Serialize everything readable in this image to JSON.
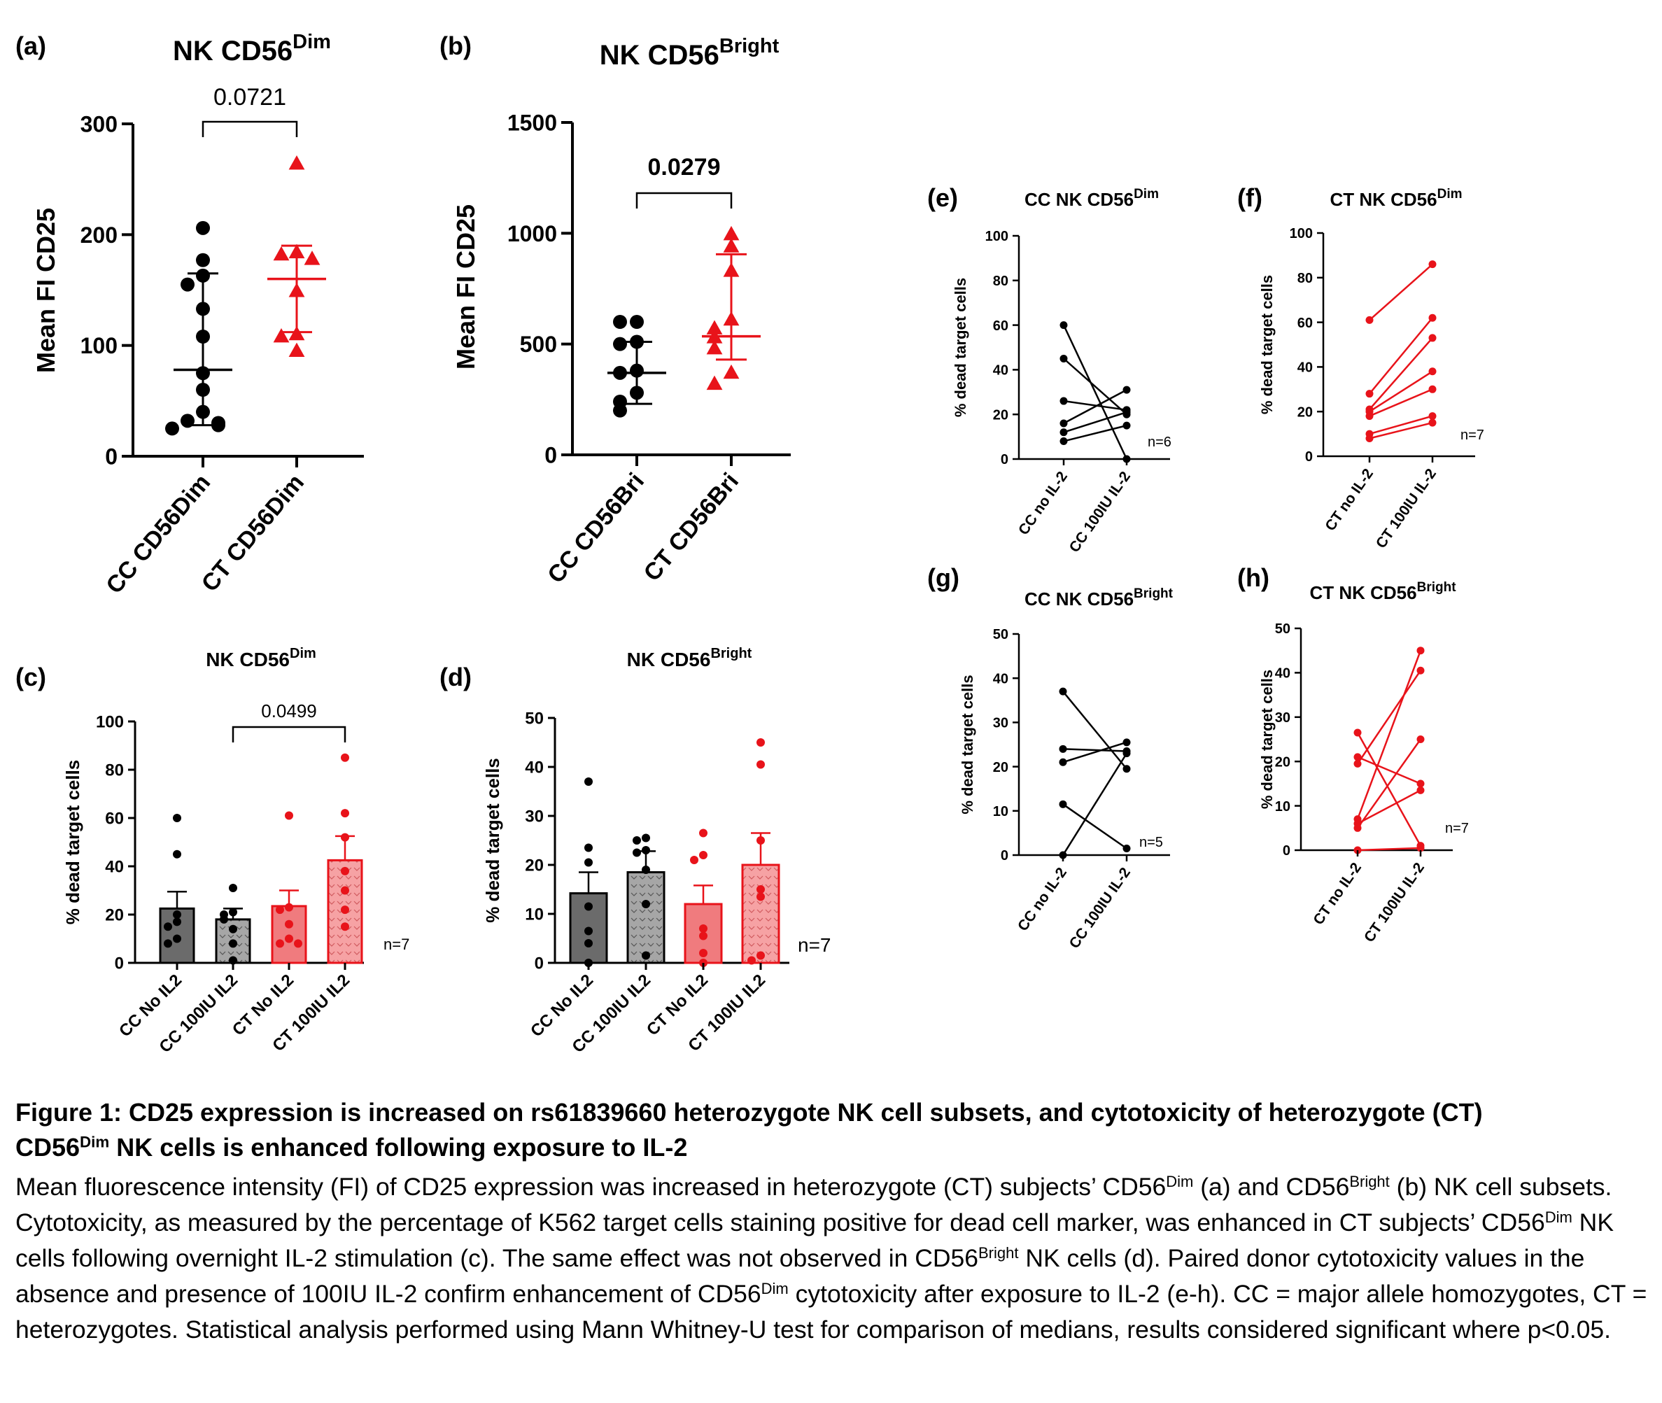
{
  "colors": {
    "cc": "#000000",
    "ct": "#e8131a",
    "ccBar1": "#6b6b6b",
    "ccBar2": "#a6a6a6",
    "ctBar1": "#f07b7e",
    "ctBar2": "#f6a2a4"
  },
  "panels": [
    {
      "id": "a",
      "letter": "(a)",
      "title": "NK CD56",
      "title_sup": "Dim",
      "pvalue": "0.0721",
      "ylabel": "Mean FI CD25",
      "yticks": [
        "0",
        "100",
        "200",
        "300"
      ]
    },
    {
      "id": "b",
      "letter": "(b)",
      "title": "NK CD56",
      "title_sup": "Bright",
      "pvalue": "0.0279",
      "ylabel": "Mean FI CD25",
      "yticks": [
        "0",
        "500",
        "1000",
        "1500"
      ]
    },
    {
      "id": "c",
      "letter": "(c)",
      "title": "NK CD56",
      "title_sup": "Dim",
      "pvalue": "0.0499",
      "ylabel": "% dead target cells",
      "yticks": [
        "0",
        "20",
        "40",
        "60",
        "80",
        "100"
      ],
      "n": "n=7"
    },
    {
      "id": "d",
      "letter": "(d)",
      "title": "NK CD56",
      "title_sup": "Bright",
      "ylabel": "% dead target cells",
      "yticks": [
        "0",
        "10",
        "20",
        "30",
        "40",
        "50"
      ],
      "n": "n=7"
    },
    {
      "id": "e",
      "letter": "(e)",
      "title": "CC NK CD56",
      "title_sup": "Dim",
      "ylabel": "% dead target cells",
      "yticks": [
        "0",
        "20",
        "40",
        "60",
        "80",
        "100"
      ],
      "n": "n=6"
    },
    {
      "id": "f",
      "letter": "(f)",
      "title": "CT NK CD56",
      "title_sup": "Dim",
      "ylabel": "% dead target cells",
      "yticks": [
        "0",
        "20",
        "40",
        "60",
        "80",
        "100"
      ],
      "n": "n=7"
    },
    {
      "id": "g",
      "letter": "(g)",
      "title": "CC NK CD56",
      "title_sup": "Bright",
      "ylabel": "% dead target cells",
      "yticks": [
        "0",
        "10",
        "20",
        "30",
        "40",
        "50"
      ],
      "n": "n=5"
    },
    {
      "id": "h",
      "letter": "(h)",
      "title": "CT NK CD56",
      "title_sup": "Bright",
      "ylabel": "% dead target cells",
      "yticks": [
        "0",
        "10",
        "20",
        "30",
        "40",
        "50"
      ],
      "n": "n=7"
    }
  ],
  "chart_data": [
    {
      "panel": "a",
      "type": "scatter",
      "title": "NK CD56Dim",
      "ylabel": "Mean FI CD25",
      "ylim": [
        0,
        300
      ],
      "categories": [
        "CC CD56Dim",
        "CT CD56Dim"
      ],
      "series": [
        {
          "name": "CC CD56Dim",
          "color": "#000000",
          "marker": "circle",
          "values": [
            206,
            177,
            163,
            155,
            133,
            108,
            75,
            60,
            40,
            32,
            30,
            28,
            25
          ],
          "mean": 78,
          "error": [
            28,
            165
          ]
        },
        {
          "name": "CT CD56Dim",
          "color": "#e8131a",
          "marker": "triangle",
          "values": [
            264,
            184,
            182,
            178,
            149,
            110,
            108,
            95
          ],
          "mean": 160,
          "error": [
            112,
            190
          ]
        }
      ],
      "annotation": {
        "text": "0.0721",
        "between": [
          "CC CD56Dim",
          "CT CD56Dim"
        ]
      }
    },
    {
      "panel": "b",
      "type": "scatter",
      "title": "NK CD56Bright",
      "ylabel": "Mean FI CD25",
      "ylim": [
        0,
        1500
      ],
      "categories": [
        "CC CD56Bri",
        "CT CD56Bri"
      ],
      "series": [
        {
          "name": "CC CD56Bri",
          "color": "#000000",
          "marker": "circle",
          "values": [
            600,
            600,
            510,
            500,
            380,
            370,
            280,
            240,
            200
          ],
          "mean": 370,
          "error": [
            230,
            510
          ]
        },
        {
          "name": "CT CD56Bri",
          "color": "#e8131a",
          "marker": "triangle",
          "values": [
            995,
            940,
            830,
            610,
            570,
            530,
            480,
            370,
            320
          ],
          "mean": 535,
          "error": [
            430,
            905
          ]
        }
      ],
      "annotation": {
        "text": "0.0279",
        "between": [
          "CC CD56Bri",
          "CT CD56Bri"
        ],
        "bold": true
      }
    },
    {
      "panel": "c",
      "type": "bar",
      "title": "NK CD56Dim",
      "ylabel": "% dead target cells",
      "ylim": [
        0,
        100
      ],
      "categories": [
        "CC  No IL2",
        "CC 100IU IL2",
        "CT No IL2",
        "CT 100IU IL2"
      ],
      "values": [
        22.5,
        18,
        23.5,
        42.5
      ],
      "sem": [
        7,
        4.5,
        6.5,
        10
      ],
      "points": [
        [
          60,
          45,
          20,
          17,
          15,
          10,
          8
        ],
        [
          31,
          21,
          20,
          18,
          14,
          8,
          1
        ],
        [
          61,
          23,
          22,
          16,
          10,
          8,
          8
        ],
        [
          85,
          62,
          52,
          38,
          30,
          22,
          15
        ]
      ],
      "annotation": {
        "text": "0.0499",
        "between": [
          "CC 100IU IL2",
          "CT 100IU IL2"
        ]
      },
      "note": "n=7"
    },
    {
      "panel": "d",
      "type": "bar",
      "title": "NK CD56Bright",
      "ylabel": "% dead target cells",
      "ylim": [
        0,
        50
      ],
      "categories": [
        "CC No IL2",
        "CC 100IU IL2",
        "CT No IL2",
        "CT 100IU IL2"
      ],
      "values": [
        14.2,
        18.5,
        12,
        20
      ],
      "sem": [
        4.3,
        4.3,
        3.8,
        6.5
      ],
      "points": [
        [
          37,
          23.5,
          20.5,
          11.5,
          6.5,
          4,
          0
        ],
        [
          25.5,
          25,
          23,
          22.5,
          19,
          12,
          1.5
        ],
        [
          26.5,
          22,
          21,
          7,
          5.5,
          2,
          0
        ],
        [
          45,
          40.5,
          25,
          15,
          13.5,
          1.5,
          0.5
        ]
      ],
      "note": "n=7"
    },
    {
      "panel": "e",
      "type": "line",
      "title": "CC NK CD56Dim",
      "ylabel": "% dead target cells",
      "ylim": [
        0,
        100
      ],
      "categories": [
        "CC no IL-2",
        "CC 100IU IL-2"
      ],
      "pairs": [
        [
          60,
          0
        ],
        [
          45,
          20
        ],
        [
          26,
          22
        ],
        [
          16,
          31
        ],
        [
          12,
          21
        ],
        [
          8,
          15
        ]
      ],
      "note": "n=6"
    },
    {
      "panel": "f",
      "type": "line",
      "title": "CT NK CD56Dim",
      "ylabel": "% dead target cells",
      "ylim": [
        0,
        100
      ],
      "categories": [
        "CT no IL-2",
        "CT 100IU IL-2"
      ],
      "pairs": [
        [
          61,
          86
        ],
        [
          28,
          62
        ],
        [
          21,
          53
        ],
        [
          20,
          38
        ],
        [
          18,
          30
        ],
        [
          10,
          18
        ],
        [
          8,
          15
        ]
      ],
      "note": "n=7"
    },
    {
      "panel": "g",
      "type": "line",
      "title": "CC NK CD56Bright",
      "ylabel": "% dead target cells",
      "ylim": [
        0,
        50
      ],
      "categories": [
        "CC no IL-2",
        "CC 100IU IL-2"
      ],
      "pairs": [
        [
          37,
          19.5
        ],
        [
          24,
          23.5
        ],
        [
          21,
          25.5
        ],
        [
          11.5,
          1.5
        ],
        [
          0,
          23
        ]
      ],
      "note": "n=5"
    },
    {
      "panel": "h",
      "type": "line",
      "title": "CT NK CD56Bright",
      "ylabel": "% dead target cells",
      "ylim": [
        0,
        50
      ],
      "categories": [
        "CT no IL-2",
        "CT 100IU IL-2"
      ],
      "pairs": [
        [
          26.5,
          1
        ],
        [
          21,
          15
        ],
        [
          19.5,
          40.5
        ],
        [
          7,
          45
        ],
        [
          6,
          13.5
        ],
        [
          5,
          25
        ],
        [
          0,
          0.5
        ]
      ],
      "note": "n=7"
    }
  ],
  "caption": {
    "title_part1": "Figure 1: CD25 expression is increased on rs61839660 heterozygote NK cell subsets, and cytotoxicity of heterozygote (CT)",
    "title_part2a": "CD56",
    "title_sup": "Dim",
    "title_part2b": " NK cells is enhanced following exposure to IL-2",
    "body_1": "Mean fluorescence intensity (FI) of CD25 expression was increased in heterozygote (CT) subjects’ CD56",
    "sup_dim": "Dim",
    "body_2": " (a) and CD56",
    "sup_bright": "Bright",
    "body_3": " (b) NK cell subsets. Cytotoxicity, as measured by the percentage of K562 target cells staining positive for dead cell marker, was enhanced in CT subjects’ CD56",
    "body_4": " NK cells following overnight IL-2 stimulation (c). The same effect was not observed in CD56",
    "body_5": " NK cells (d). Paired donor cytotoxicity values in the absence and presence of 100IU IL-2 confirm enhancement of CD56",
    "body_6": " cytotoxicity after exposure to IL-2 (e-h). CC = major allele homozygotes, CT = heterozygotes. Statistical analysis performed using Mann Whitney-U test for comparison of medians, results considered significant where p<0.05."
  }
}
